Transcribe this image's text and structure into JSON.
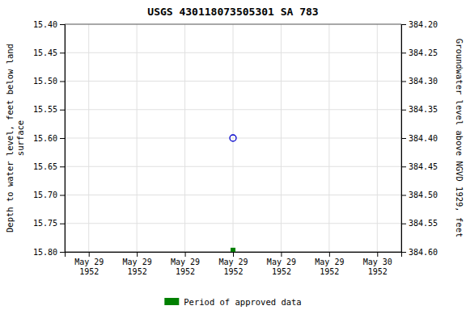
{
  "chart_data": {
    "type": "scatter",
    "title": "USGS 430118073505301 SA 783",
    "ylabel": "Depth to water level, feet below land\nsurface",
    "y2label": "Groundwater level above NGVD 1929, feet",
    "categories": [
      "May 29\n1952",
      "May 29\n1952",
      "May 29\n1952",
      "May 29\n1952",
      "May 29\n1952",
      "May 29\n1952",
      "May 30\n1952"
    ],
    "series": [
      {
        "color": "#0000cc",
        "marker": "open-circle",
        "values": [
          null,
          null,
          null,
          15.6,
          null,
          null,
          null
        ]
      },
      {
        "name": "Period of approved data",
        "color": "#008000",
        "marker": "square",
        "values": [
          null,
          null,
          null,
          15.797,
          null,
          null,
          null
        ]
      }
    ],
    "ylim": [
      15.8,
      15.4
    ],
    "yticks": [
      {
        "value": 15.4,
        "label": "15.40"
      },
      15.45,
      {
        "value": 15.5,
        "label": "15.50"
      },
      15.55,
      {
        "value": 15.6,
        "label": "15.60"
      },
      15.65,
      {
        "value": 15.7,
        "label": "15.70"
      },
      15.75,
      {
        "value": 15.8,
        "label": "15.80"
      }
    ],
    "y2lim": [
      384.6,
      384.2
    ],
    "y2ticks": [
      {
        "value": 384.2,
        "label": "384.20"
      },
      384.25,
      {
        "value": 384.3,
        "label": "384.30"
      },
      384.35,
      {
        "value": 384.4,
        "label": "384.40"
      },
      384.45,
      {
        "value": 384.5,
        "label": "384.50"
      },
      384.55,
      {
        "value": 384.6,
        "label": "384.60"
      }
    ],
    "grid": true,
    "legend": "bottom"
  }
}
